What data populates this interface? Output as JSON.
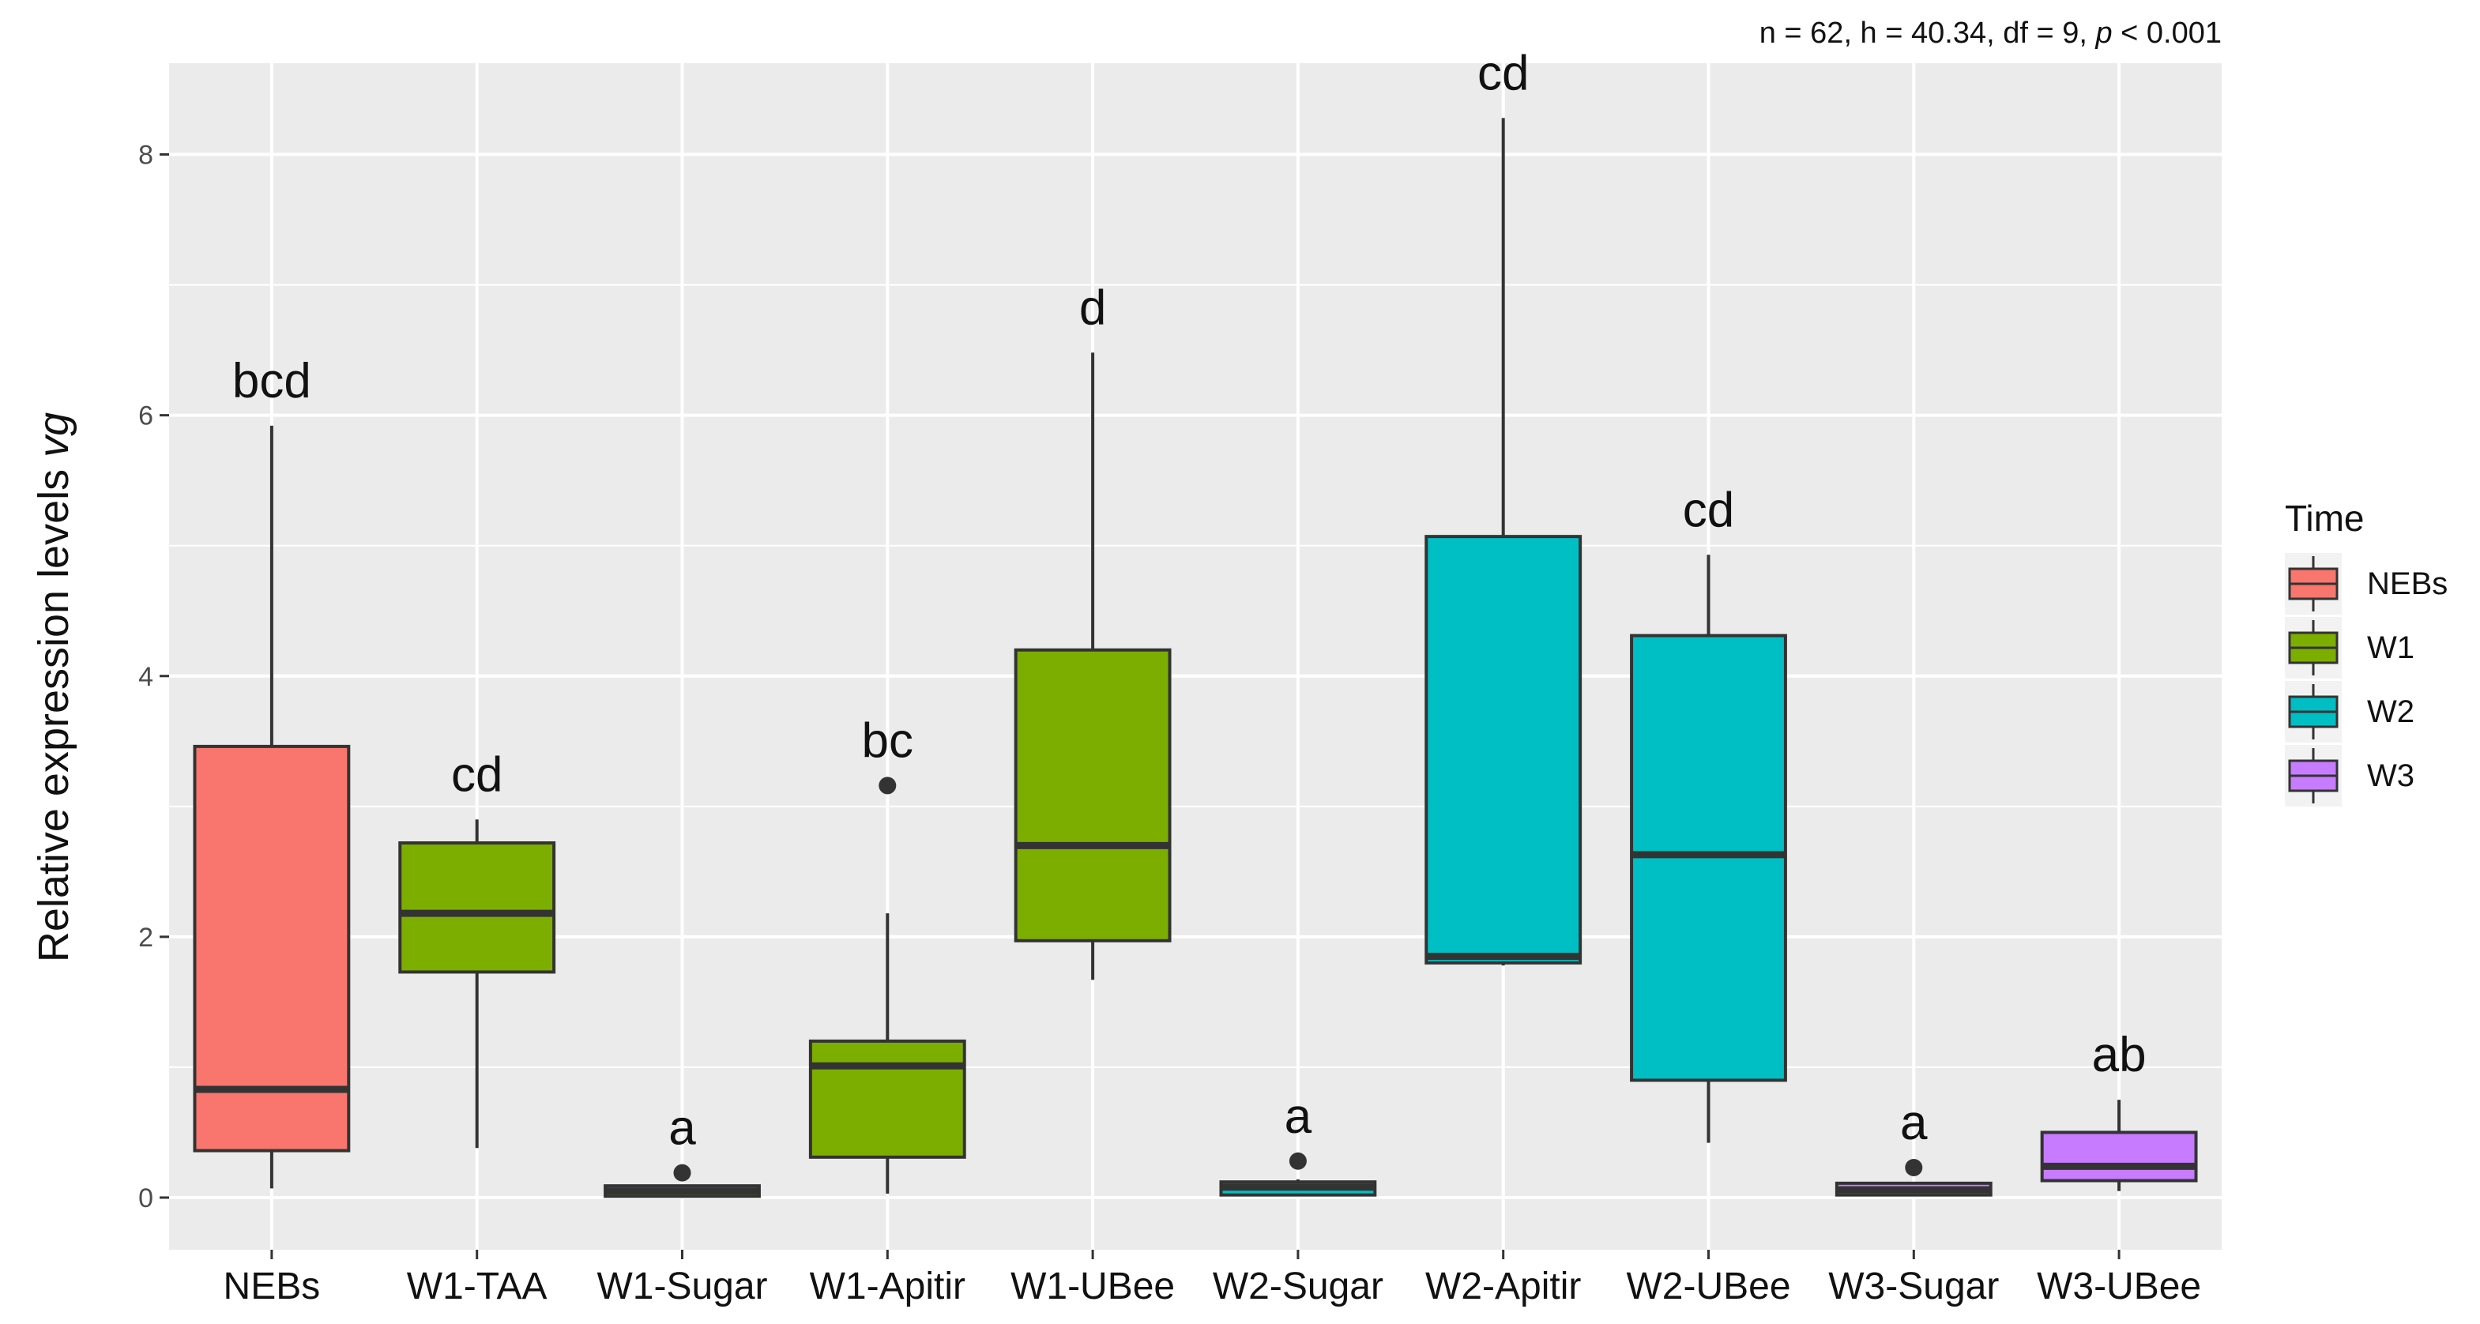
{
  "chart_data": {
    "type": "box",
    "stat_annotation": {
      "prefix": "n = 62, h = 40.34, df = 9, ",
      "p_symbol": "p",
      "suffix": " < 0.001"
    },
    "ylabel": "Relative expression levels ",
    "ylabel_italic": "vg",
    "xlabel": "",
    "ylim": [
      -0.4,
      8.7
    ],
    "yticks": [
      0,
      2,
      4,
      6,
      8
    ],
    "grid": true,
    "legend": {
      "title": "Time",
      "position": "right",
      "entries": [
        {
          "label": "NEBs",
          "color": "#F8766D"
        },
        {
          "label": "W1",
          "color": "#7CAE00"
        },
        {
          "label": "W2",
          "color": "#00BFC4"
        },
        {
          "label": "W3",
          "color": "#C77CFF"
        }
      ]
    },
    "colors": {
      "NEBs": "#F8766D",
      "W1": "#7CAE00",
      "W2": "#00BFC4",
      "W3": "#C77CFF",
      "panel_bg": "#EBEBEB",
      "gridline": "#FFFFFF",
      "box_line": "#333333"
    },
    "boxes": [
      {
        "category": "NEBs",
        "group": "NEBs",
        "whisker_low": 0.07,
        "q1": 0.36,
        "median": 0.83,
        "q3": 3.46,
        "whisker_high": 5.92,
        "outliers": [],
        "letter": "bcd"
      },
      {
        "category": "W1-TAA",
        "group": "W1",
        "whisker_low": 0.38,
        "q1": 1.73,
        "median": 2.18,
        "q3": 2.72,
        "whisker_high": 2.9,
        "outliers": [],
        "letter": "cd"
      },
      {
        "category": "W1-Sugar",
        "group": "W1",
        "whisker_low": 0.01,
        "q1": 0.01,
        "median": 0.05,
        "q3": 0.09,
        "whisker_high": 0.1,
        "outliers": [
          0.19
        ],
        "letter": "a"
      },
      {
        "category": "W1-Apitir",
        "group": "W1",
        "whisker_low": 0.03,
        "q1": 0.31,
        "median": 1.01,
        "q3": 1.2,
        "whisker_high": 2.18,
        "outliers": [
          3.16
        ],
        "letter": "bc"
      },
      {
        "category": "W1-UBee",
        "group": "W1",
        "whisker_low": 1.67,
        "q1": 1.97,
        "median": 2.7,
        "q3": 4.2,
        "whisker_high": 6.48,
        "outliers": [],
        "letter": "d"
      },
      {
        "category": "W2-Sugar",
        "group": "W2",
        "whisker_low": 0.02,
        "q1": 0.02,
        "median": 0.08,
        "q3": 0.12,
        "whisker_high": 0.14,
        "outliers": [
          0.28
        ],
        "letter": "a"
      },
      {
        "category": "W2-Apitir",
        "group": "W2",
        "whisker_low": 1.78,
        "q1": 1.8,
        "median": 1.85,
        "q3": 5.07,
        "whisker_high": 8.28,
        "outliers": [],
        "letter": "cd"
      },
      {
        "category": "W2-UBee",
        "group": "W2",
        "whisker_low": 0.42,
        "q1": 0.9,
        "median": 2.63,
        "q3": 4.31,
        "whisker_high": 4.93,
        "outliers": [],
        "letter": "cd"
      },
      {
        "category": "W3-Sugar",
        "group": "W3",
        "whisker_low": 0.02,
        "q1": 0.02,
        "median": 0.06,
        "q3": 0.11,
        "whisker_high": 0.12,
        "outliers": [
          0.23
        ],
        "letter": "a"
      },
      {
        "category": "W3-UBee",
        "group": "W3",
        "whisker_low": 0.05,
        "q1": 0.13,
        "median": 0.24,
        "q3": 0.5,
        "whisker_high": 0.75,
        "outliers": [],
        "letter": "ab"
      }
    ]
  }
}
